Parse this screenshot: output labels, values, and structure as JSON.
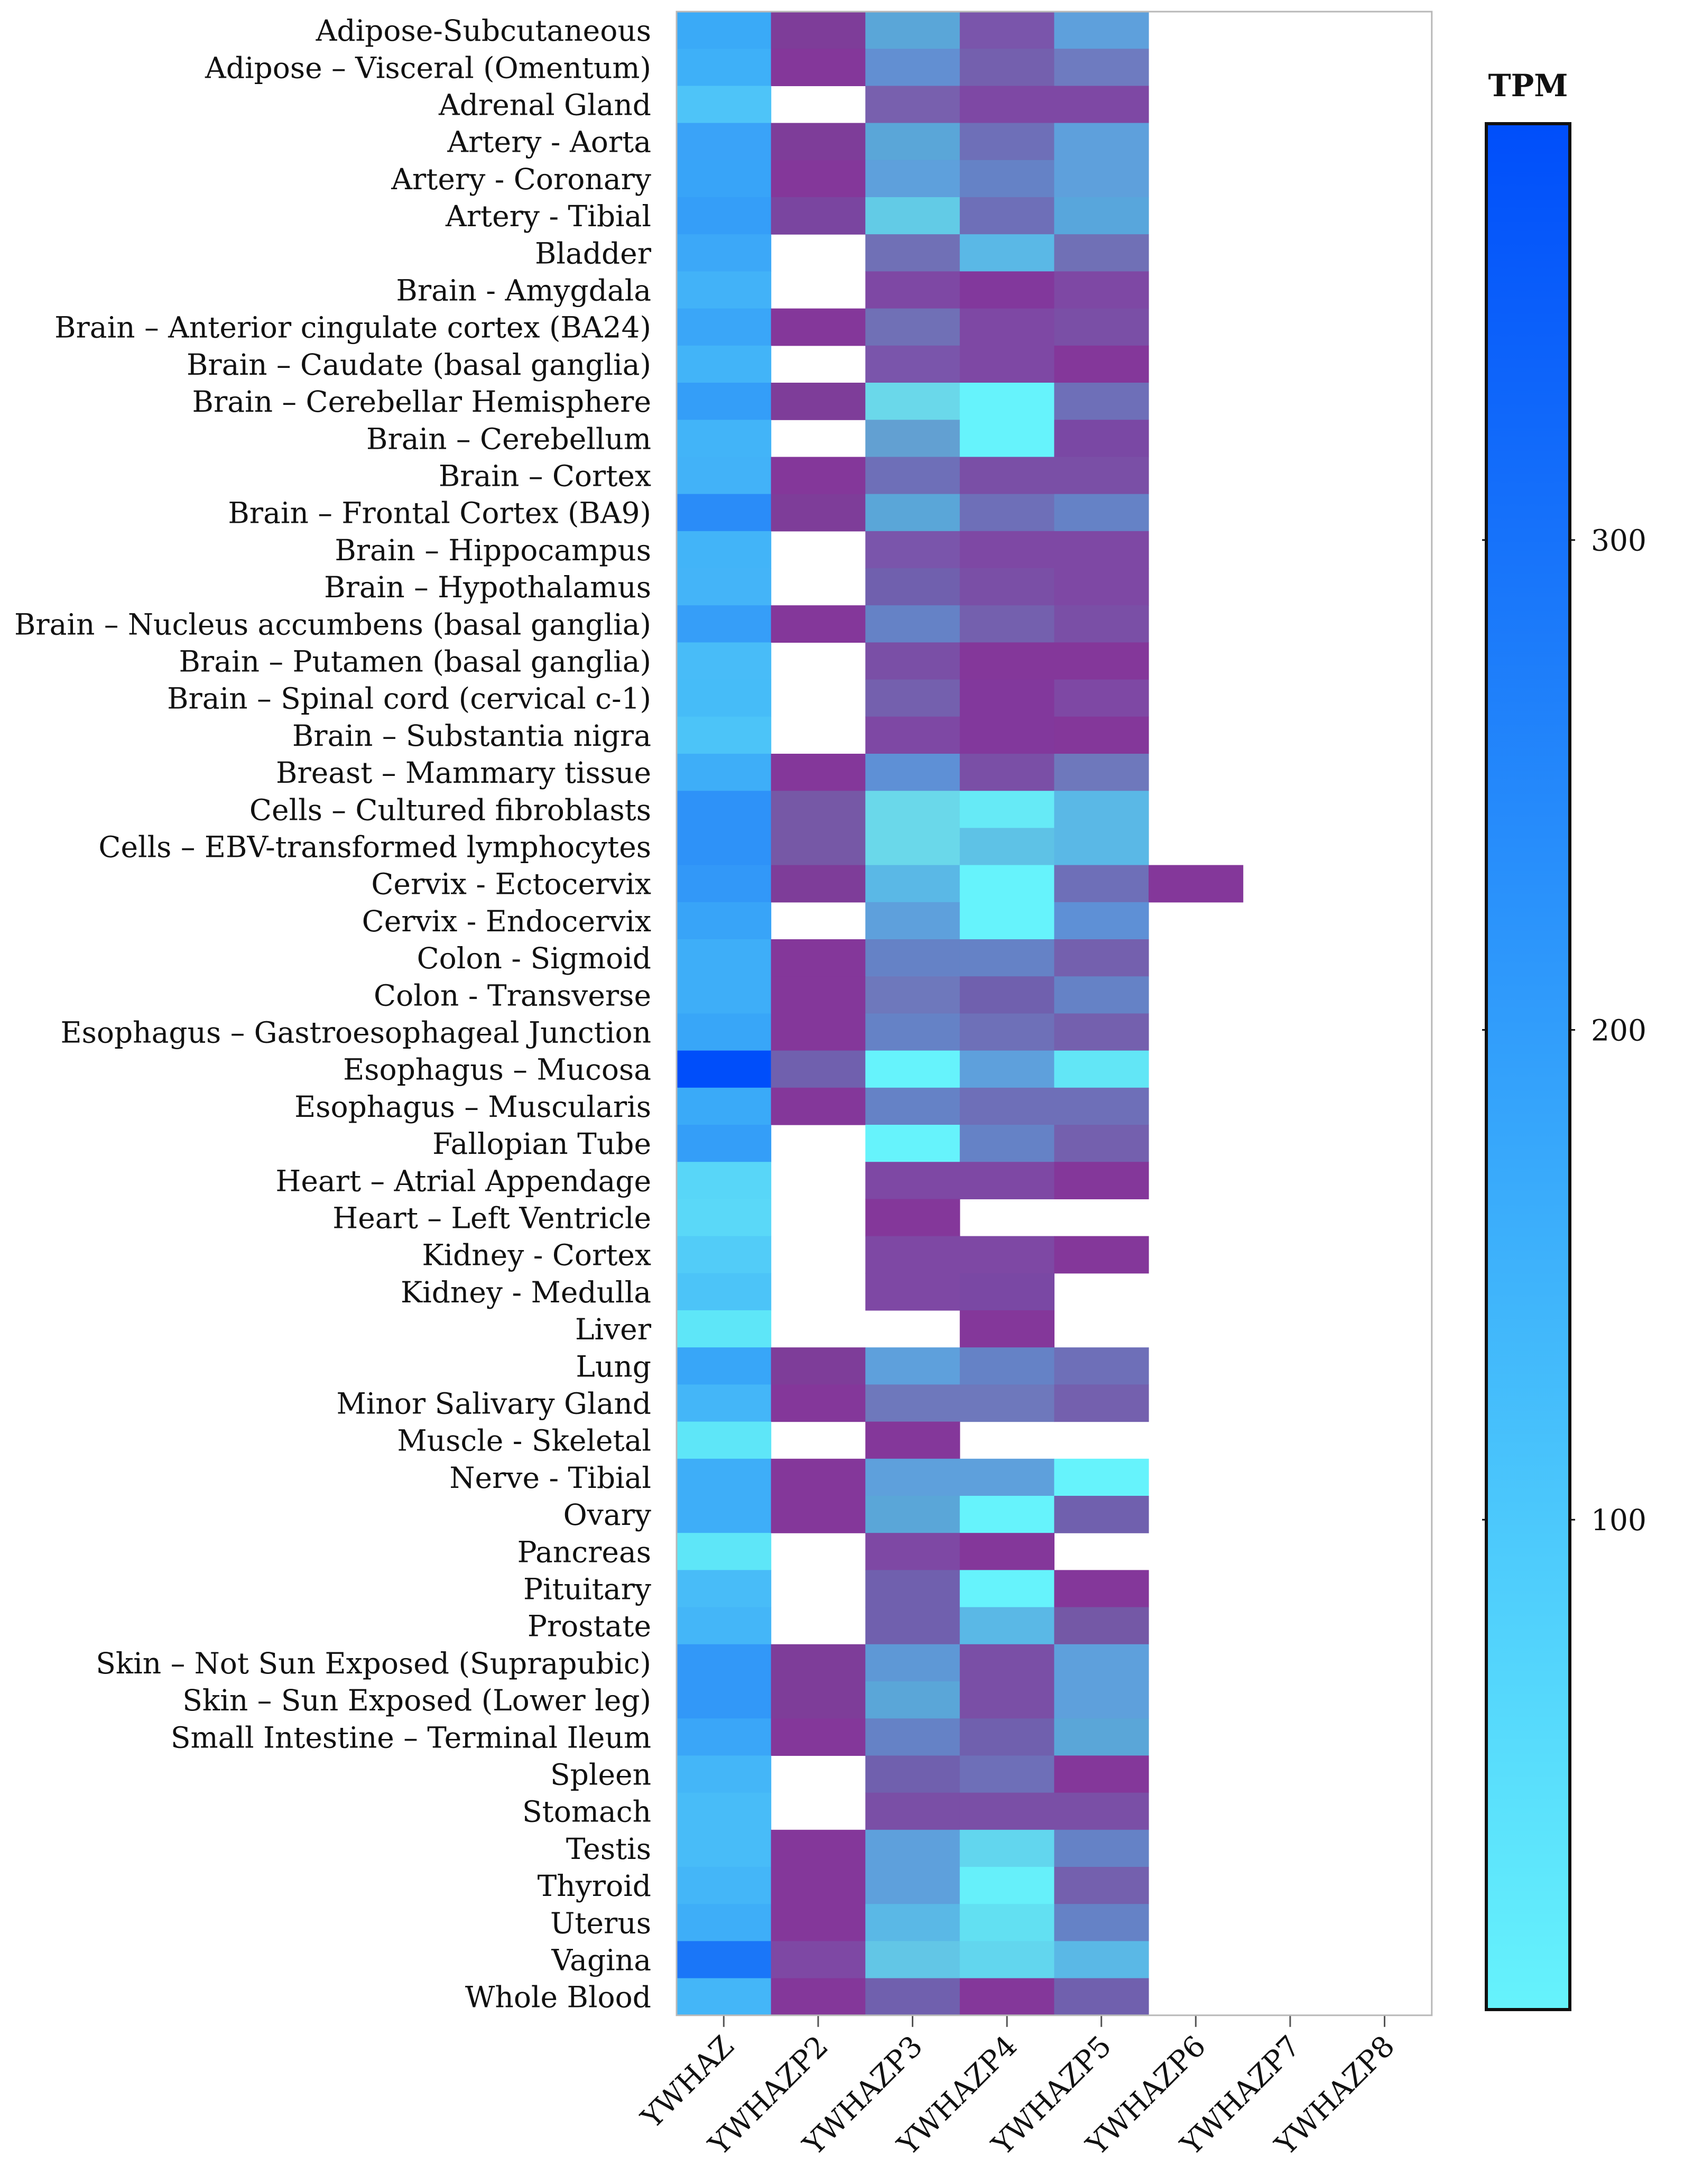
{
  "chart_data": {
    "type": "heatmap",
    "title": "",
    "colorbar_label": "TPM",
    "colorbar_ticks": [
      100,
      200,
      300
    ],
    "colorbar_range": [
      0,
      385
    ],
    "color_scale": {
      "low": "#66F3FC",
      "high": "#004EFA",
      "missing": "#FFFFFF"
    },
    "columns": [
      "YWHAZ",
      "YWHAZP2",
      "YWHAZP3",
      "YWHAZP4",
      "YWHAZP5",
      "YWHAZP6",
      "YWHAZP7",
      "YWHAZP8"
    ],
    "rows": [
      "Adipose-Subcutaneous",
      "Adipose – Visceral (Omentum)",
      "Adrenal Gland",
      "Artery - Aorta",
      "Artery - Coronary",
      "Artery - Tibial",
      "Bladder",
      "Brain - Amygdala",
      "Brain – Anterior cingulate cortex (BA24)",
      "Brain – Caudate (basal ganglia)",
      "Brain – Cerebellar Hemisphere",
      "Brain – Cerebellum",
      "Brain – Cortex",
      "Brain – Frontal Cortex (BA9)",
      "Brain – Hippocampus",
      "Brain – Hypothalamus",
      "Brain – Nucleus accumbens (basal ganglia)",
      "Brain – Putamen (basal ganglia)",
      "Brain – Spinal cord (cervical c-1)",
      "Brain – Substantia nigra",
      "Breast – Mammary tissue",
      "Cells – Cultured fibroblasts",
      "Cells – EBV-transformed lymphocytes",
      "Cervix - Ectocervix",
      "Cervix - Endocervix",
      "Colon - Sigmoid",
      "Colon - Transverse",
      "Esophagus – Gastroesophageal Junction",
      "Esophagus – Mucosa",
      "Esophagus – Muscularis",
      "Fallopian Tube",
      "Heart – Atrial Appendage",
      "Heart – Left Ventricle",
      "Kidney - Cortex",
      "Kidney - Medulla",
      "Liver",
      "Lung",
      "Minor Salivary Gland",
      "Muscle - Skeletal",
      "Nerve - Tibial",
      "Ovary",
      "Pancreas",
      "Pituitary",
      "Prostate",
      "Skin – Not Sun Exposed (Suprapubic)",
      "Skin – Sun Exposed (Lower leg)",
      "Small Intestine – Terminal Ileum",
      "Spleen",
      "Stomach",
      "Testis",
      "Thyroid",
      "Uterus",
      "Vagina",
      "Whole Blood"
    ],
    "cell_colors": [
      [
        "#3aaaf7",
        "#7e3d99",
        "#5aa6d8",
        "#7a55ab",
        "#5ea0dc",
        null,
        null,
        null
      ],
      [
        "#3eb0f8",
        "#84379a",
        "#628fd2",
        "#7460ae",
        "#6e7bc0",
        null,
        null,
        null
      ],
      [
        "#4ec4f8",
        null,
        "#7860ae",
        "#7e48a4",
        "#7e48a4",
        null,
        null,
        null
      ],
      [
        "#3aa3f8",
        "#7e3d99",
        "#5aa6d8",
        "#6e6fb8",
        "#5ea0dc",
        null,
        null,
        null
      ],
      [
        "#38a4f8",
        "#84379a",
        "#5ea0dc",
        "#6582c6",
        "#5ea0dc",
        null,
        null,
        null
      ],
      [
        "#359ef8",
        "#7a45a0",
        "#62cbe6",
        "#6e6fb8",
        "#58a6dc",
        null,
        null,
        null
      ],
      [
        "#3ca8f8",
        null,
        "#7070b6",
        "#5ab8e6",
        "#7070b6",
        null,
        null,
        null
      ],
      [
        "#42b2f8",
        null,
        "#7e48a4",
        "#82389c",
        "#7e48a4",
        null,
        null,
        null
      ],
      [
        "#3aa6f8",
        "#84379a",
        "#7070b6",
        "#7e48a4",
        "#7a4fa6",
        null,
        null,
        null
      ],
      [
        "#42b4f8",
        null,
        "#7a55ab",
        "#7e48a4",
        "#84379a",
        null,
        null,
        null
      ],
      [
        "#349ef8",
        "#7e3d99",
        "#6ad8ea",
        "#66f3fc",
        "#6e6fb8",
        null,
        null,
        null
      ],
      [
        "#42b4f8",
        null,
        "#62a0d2",
        "#66f3fc",
        "#7a48a4",
        null,
        null,
        null
      ],
      [
        "#42b2f8",
        "#84379a",
        "#6e6fb8",
        "#7a4fa6",
        "#7a4fa6",
        null,
        null,
        null
      ],
      [
        "#2a8cf8",
        "#7e3d99",
        "#5aa6d8",
        "#6e6fb8",
        "#6582c6",
        null,
        null,
        null
      ],
      [
        "#42b4f8",
        null,
        "#7a55ab",
        "#7e48a4",
        "#7e48a4",
        null,
        null,
        null
      ],
      [
        "#44b4f8",
        null,
        "#7060ae",
        "#7a4fa6",
        "#7e48a4",
        null,
        null,
        null
      ],
      [
        "#369ef8",
        "#84379a",
        "#6582c6",
        "#7460ae",
        "#7a4fa6",
        null,
        null,
        null
      ],
      [
        "#48bcf8",
        null,
        "#7a4fa6",
        "#84379a",
        "#84379a",
        null,
        null,
        null
      ],
      [
        "#46bcf8",
        null,
        "#7460ae",
        "#82389c",
        "#7e48a4",
        null,
        null,
        null
      ],
      [
        "#4cc4f8",
        null,
        "#7e48a4",
        "#82389c",
        "#84379a",
        null,
        null,
        null
      ],
      [
        "#3eaef8",
        "#84379a",
        "#5e90d6",
        "#7a4fa6",
        "#6e78bc",
        null,
        null,
        null
      ],
      [
        "#2e92f8",
        "#7658a6",
        "#6ad8ea",
        "#66eaf6",
        "#5ab8e6",
        null,
        null,
        null
      ],
      [
        "#2e92f8",
        "#7658a6",
        "#6ad8ea",
        "#5ec2e6",
        "#5ab8e6",
        null,
        null,
        null
      ],
      [
        "#3298f8",
        "#7e3d99",
        "#5ab8e6",
        "#66f3fc",
        "#6e6fb8",
        "#84379a",
        null,
        null
      ],
      [
        "#38a4f8",
        null,
        "#5ea0dc",
        "#66f3fc",
        "#5e90d6",
        null,
        null,
        null
      ],
      [
        "#3eaef8",
        "#84379a",
        "#6582c6",
        "#6582c6",
        "#7460ae",
        null,
        null,
        null
      ],
      [
        "#3eaef8",
        "#84379a",
        "#6e78bc",
        "#7060ae",
        "#6582c6",
        null,
        null,
        null
      ],
      [
        "#38a6f8",
        "#84379a",
        "#6582c6",
        "#6e70b8",
        "#7460ae",
        null,
        null,
        null
      ],
      [
        "#004efa",
        "#7060ae",
        "#66f3fc",
        "#5ea0dc",
        "#62e6f6",
        null,
        null,
        null
      ],
      [
        "#3aaaf8",
        "#84379a",
        "#6582c6",
        "#6e6fb8",
        "#6e6fb8",
        null,
        null,
        null
      ],
      [
        "#349ef8",
        null,
        "#66f3fc",
        "#6582c6",
        "#7460ae",
        null,
        null,
        null
      ],
      [
        "#58d6f8",
        null,
        "#7e48a4",
        "#7e48a4",
        "#84379a",
        null,
        null,
        null
      ],
      [
        "#5ad8f8",
        null,
        "#84379a",
        null,
        null,
        null,
        null,
        null
      ],
      [
        "#52ccf8",
        null,
        "#7e48a4",
        "#7e48a4",
        "#84379a",
        null,
        null,
        null
      ],
      [
        "#4cc4f8",
        null,
        "#7e48a4",
        "#7a48a4",
        null,
        null,
        null,
        null
      ],
      [
        "#5ee6f8",
        null,
        null,
        "#84379a",
        null,
        null,
        null,
        null
      ],
      [
        "#38a6f8",
        "#7e3d99",
        "#5ea0dc",
        "#6582c6",
        "#6e6fb8",
        null,
        null,
        null
      ],
      [
        "#44b6f8",
        "#84379a",
        "#6e78bc",
        "#6e78bc",
        "#7460ae",
        null,
        null,
        null
      ],
      [
        "#5ee6f8",
        null,
        "#84379a",
        null,
        null,
        null,
        null,
        null
      ],
      [
        "#3eaef8",
        "#84379a",
        "#5ea0dc",
        "#5ea0dc",
        "#66f3fc",
        null,
        null,
        null
      ],
      [
        "#3eaef8",
        "#84379a",
        "#5aa6d8",
        "#66f3fc",
        "#7060ae",
        null,
        null,
        null
      ],
      [
        "#5ee6f8",
        null,
        "#7e48a4",
        "#84379a",
        null,
        null,
        null,
        null
      ],
      [
        "#48bcf8",
        null,
        "#7060ae",
        "#66f3fc",
        "#84379a",
        null,
        null,
        null
      ],
      [
        "#44b6f8",
        null,
        "#7060ae",
        "#5ab8e6",
        "#7458a6",
        null,
        null,
        null
      ],
      [
        "#3298f8",
        "#7e3d99",
        "#5e98d6",
        "#7a4fa6",
        "#5ea0dc",
        null,
        null,
        null
      ],
      [
        "#3298f8",
        "#7e3d99",
        "#5aa6d8",
        "#7a4fa6",
        "#5ea0dc",
        null,
        null,
        null
      ],
      [
        "#3aa6f8",
        "#84379a",
        "#6582c6",
        "#7060ae",
        "#5aa6d8",
        null,
        null,
        null
      ],
      [
        "#44b6f8",
        null,
        "#7060ae",
        "#6e6fb8",
        "#84379a",
        null,
        null,
        null
      ],
      [
        "#48bcf8",
        null,
        "#7a4fa6",
        "#7a4fa6",
        "#7a4fa6",
        null,
        null,
        null
      ],
      [
        "#48bcf8",
        "#84379a",
        "#5ea0dc",
        "#62d6ee",
        "#6582c6",
        null,
        null,
        null
      ],
      [
        "#44b6f8",
        "#84379a",
        "#5ea0dc",
        "#66f0fa",
        "#7460ae",
        null,
        null,
        null
      ],
      [
        "#3eaef8",
        "#84379a",
        "#5ab8e6",
        "#62e0f2",
        "#6582c6",
        null,
        null,
        null
      ],
      [
        "#1a76f8",
        "#7e48a4",
        "#62c6e6",
        "#62d6ee",
        "#5ab8e6",
        null,
        null,
        null
      ],
      [
        "#44b6f8",
        "#84379a",
        "#7060ae",
        "#84379a",
        "#7060ae",
        null,
        null,
        null
      ]
    ]
  }
}
